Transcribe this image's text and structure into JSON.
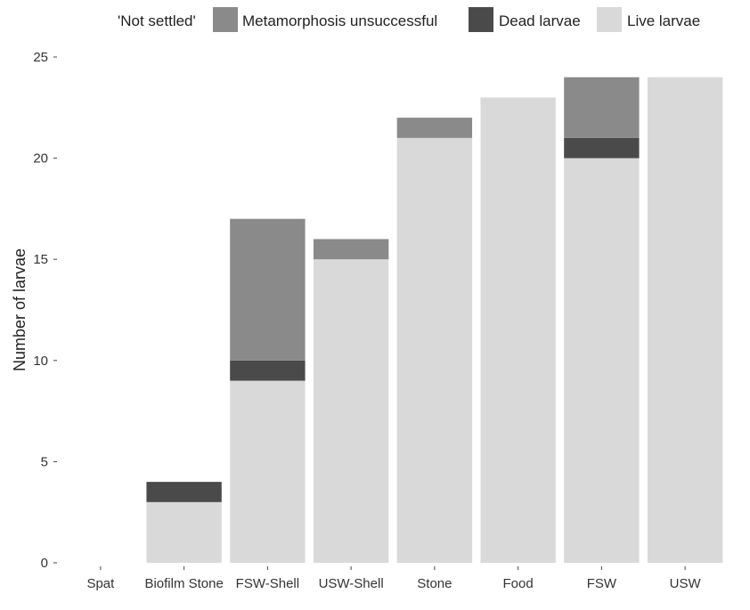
{
  "chart_data": {
    "type": "bar",
    "stacked": true,
    "legend": {
      "title": "'Not settled'",
      "placement": "top"
    },
    "categories": [
      "Spat",
      "Biofilm Stone",
      "FSW-Shell",
      "USW-Shell",
      "Stone",
      "Food",
      "FSW",
      "USW"
    ],
    "series": [
      {
        "name": "Live larvae",
        "color": "#d9d9d9",
        "values": [
          0,
          3,
          9,
          15,
          21,
          23,
          20,
          24
        ]
      },
      {
        "name": "Dead larvae",
        "color": "#4a4a4a",
        "values": [
          0,
          1,
          1,
          0,
          0,
          0,
          1,
          0
        ]
      },
      {
        "name": "Metamorphosis unsuccessful",
        "color": "#8a8a8a",
        "values": [
          0,
          0,
          7,
          1,
          1,
          0,
          3,
          0
        ]
      }
    ],
    "legend_order": [
      "Metamorphosis unsuccessful",
      "Dead larvae",
      "Live larvae"
    ],
    "xlabel": "",
    "ylabel": "Number of larvae",
    "ylim": [
      0,
      25
    ],
    "yticks": [
      0,
      5,
      10,
      15,
      20,
      25
    ],
    "grid": false
  }
}
